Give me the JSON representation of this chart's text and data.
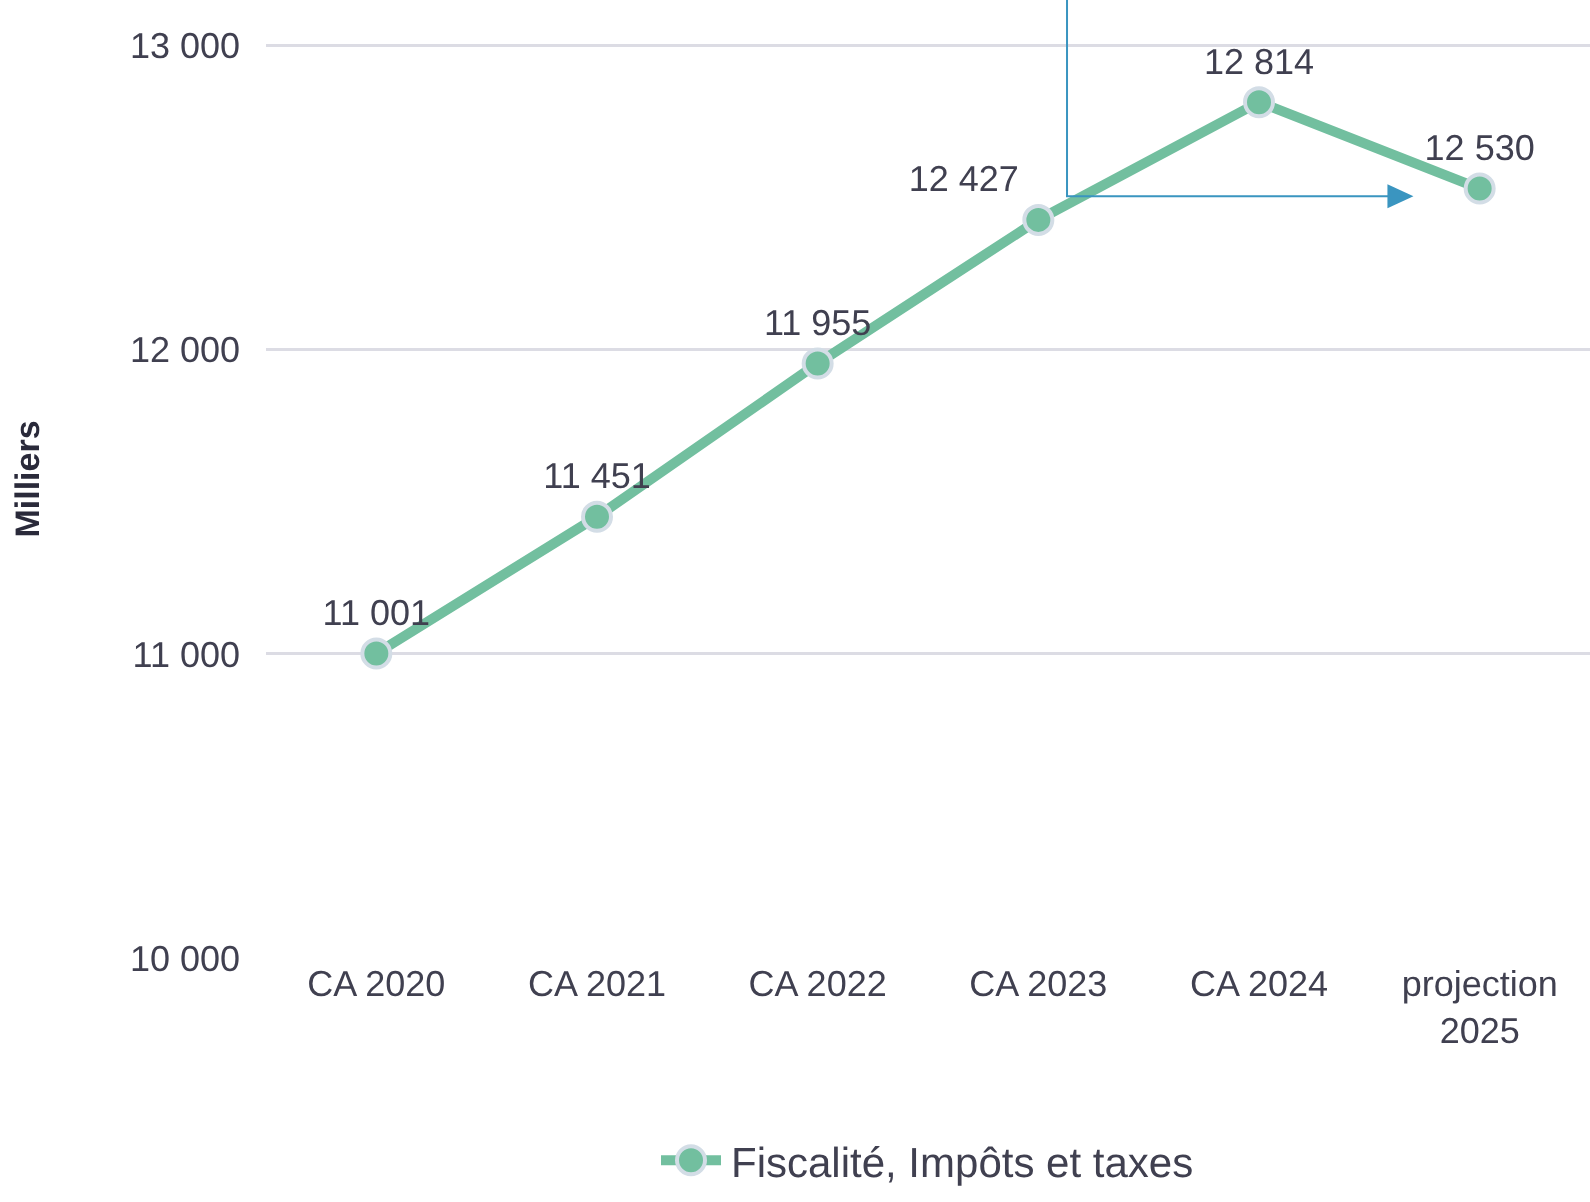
{
  "chart_data": {
    "type": "line",
    "ylabel": "Milliers",
    "categories": [
      "CA 2020",
      "CA 2021",
      "CA 2022",
      "CA 2023",
      "CA 2024",
      "projection\n2025"
    ],
    "series": [
      {
        "name": "Fiscalité, Impôts et taxes",
        "color": "#72bf9f",
        "values": [
          11001,
          11451,
          11955,
          12427,
          12814,
          12530
        ]
      }
    ],
    "ylim": [
      10000,
      13150
    ],
    "yticks": [
      {
        "value": 10000,
        "label": "10 000"
      },
      {
        "value": 11000,
        "label": "11 000"
      },
      {
        "value": 12000,
        "label": "12 000"
      },
      {
        "value": 13000,
        "label": "13 000"
      }
    ],
    "value_labels": [
      "11 001",
      "11 451",
      "11 955",
      "12 427",
      "12 814",
      "12 530"
    ],
    "grid": "y",
    "legend": "bottom",
    "marker": "circle",
    "line_style": "solid"
  }
}
